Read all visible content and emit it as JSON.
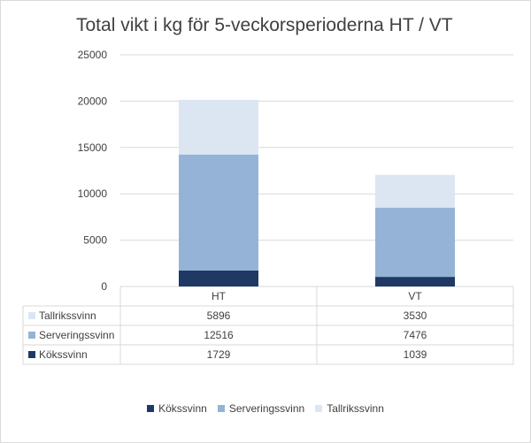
{
  "chart_data": {
    "type": "bar",
    "stacked": true,
    "title": "Total vikt i kg för 5-veckorsperioderna HT / VT",
    "categories": [
      "HT",
      "VT"
    ],
    "series": [
      {
        "name": "Kökssvinn",
        "values": [
          1729,
          1039
        ],
        "color": "#203864"
      },
      {
        "name": "Serveringssvinn",
        "values": [
          12516,
          7476
        ],
        "color": "#95b3d7"
      },
      {
        "name": "Tallrikssvinn",
        "values": [
          5896,
          3530
        ],
        "color": "#dce6f2"
      }
    ],
    "ylim": [
      0,
      25000
    ],
    "yticks": [
      "0",
      "5000",
      "10000",
      "15000",
      "20000",
      "25000"
    ],
    "grid": true,
    "data_table": true,
    "legend_position": "bottom"
  }
}
